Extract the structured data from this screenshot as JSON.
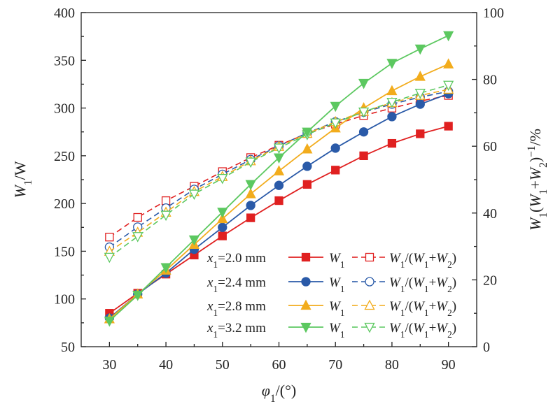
{
  "chart_data": {
    "type": "line",
    "x": [
      30,
      35,
      40,
      45,
      50,
      55,
      60,
      65,
      70,
      75,
      80,
      85,
      90
    ],
    "xlabel": "φ1/(°)",
    "ylabel_left": "W1/W",
    "ylabel_right": "W1(W1+W2)⁻¹/%",
    "xlim": [
      25,
      95
    ],
    "ylim_left": [
      50,
      400
    ],
    "ylim_right": [
      0,
      100
    ],
    "xticks": [
      "30",
      "40",
      "50",
      "60",
      "70",
      "80",
      "90"
    ],
    "yticks_left": [
      "50",
      "100",
      "150",
      "200",
      "250",
      "300",
      "350",
      "400"
    ],
    "yticks_right": [
      "0",
      "20",
      "40",
      "60",
      "80",
      "100"
    ],
    "grid": false,
    "legend_position": "bottom-right",
    "groups": [
      {
        "label": "x1=2.0 mm",
        "color": "#e02020",
        "power_series": {
          "name": "W1",
          "marker": "filled-square",
          "values": [
            85,
            106,
            126,
            146,
            166,
            185,
            203,
            220,
            235,
            250,
            263,
            273,
            281
          ]
        },
        "ratio_series": {
          "name": "W1/(W1+W2)",
          "marker": "open-square",
          "values": [
            32.8,
            38.7,
            43.7,
            48.0,
            52.4,
            56.6,
            60.3,
            63.8,
            66.6,
            69.2,
            71.4,
            73.5,
            75.2
          ]
        }
      },
      {
        "label": "x1=2.4 mm",
        "color": "#2a5aa8",
        "power_series": {
          "name": "W1",
          "marker": "filled-circle",
          "values": [
            80,
            105,
            127,
            152,
            175,
            198,
            219,
            239,
            258,
            275,
            291,
            304,
            315
          ]
        },
        "ratio_series": {
          "name": "W1/(W1+W2)",
          "marker": "open-circle",
          "values": [
            29.8,
            35.8,
            41.5,
            47.1,
            51.6,
            56.0,
            60.1,
            64.0,
            67.3,
            70.2,
            72.6,
            74.7,
            76.4
          ]
        }
      },
      {
        "label": "x1=2.8 mm",
        "color": "#f2ac1c",
        "power_series": {
          "name": "W1",
          "marker": "filled-triangle-up",
          "values": [
            79,
            105,
            130,
            157,
            184,
            210,
            234,
            257,
            279,
            300,
            318,
            333,
            346
          ]
        },
        "ratio_series": {
          "name": "W1/(W1+W2)",
          "marker": "open-triangle-up",
          "values": [
            28.5,
            34.2,
            40.2,
            46.4,
            50.9,
            55.6,
            59.9,
            63.8,
            67.3,
            70.4,
            73.0,
            75.2,
            77.0
          ]
        }
      },
      {
        "label": "x1=3.2 mm",
        "color": "#5cc860",
        "power_series": {
          "name": "W1",
          "marker": "filled-triangle-down",
          "values": [
            77,
            104,
            133,
            162,
            191,
            220,
            248,
            275,
            302,
            326,
            347,
            362,
            376
          ]
        },
        "ratio_series": {
          "name": "W1/(W1+W2)",
          "marker": "open-triangle-down",
          "values": [
            26.8,
            33.0,
            39.4,
            45.7,
            50.4,
            55.3,
            59.5,
            63.5,
            67.0,
            70.3,
            73.2,
            75.9,
            78.3
          ]
        }
      }
    ]
  }
}
